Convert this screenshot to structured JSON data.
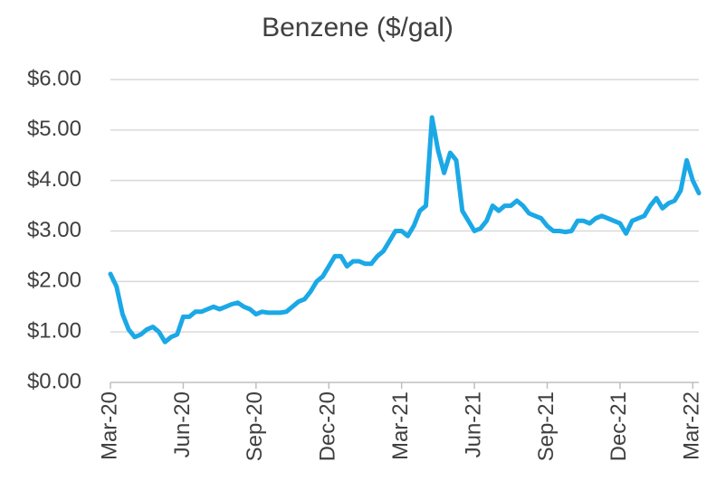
{
  "chart_data": {
    "type": "line",
    "title": "Benzene ($/gal)",
    "categories": [
      "Mar-20",
      null,
      null,
      null,
      null,
      null,
      null,
      null,
      null,
      null,
      null,
      null,
      "Jun-20",
      null,
      null,
      null,
      null,
      null,
      null,
      null,
      null,
      null,
      null,
      null,
      "Sep-20",
      null,
      null,
      null,
      null,
      null,
      null,
      null,
      null,
      null,
      null,
      null,
      "Dec-20",
      null,
      null,
      null,
      null,
      null,
      null,
      null,
      null,
      null,
      null,
      null,
      "Mar-21",
      null,
      null,
      null,
      null,
      null,
      null,
      null,
      null,
      null,
      null,
      null,
      "Jun-21",
      null,
      null,
      null,
      null,
      null,
      null,
      null,
      null,
      null,
      null,
      null,
      "Sep-21",
      null,
      null,
      null,
      null,
      null,
      null,
      null,
      null,
      null,
      null,
      null,
      "Dec-21",
      null,
      null,
      null,
      null,
      null,
      null,
      null,
      null,
      null,
      null,
      null,
      "Mar-22",
      null
    ],
    "series": [
      {
        "name": "Benzene",
        "color": "#1ba8e6",
        "values": [
          2.15,
          1.9,
          1.35,
          1.05,
          0.9,
          0.95,
          1.05,
          1.1,
          1.0,
          0.8,
          0.9,
          0.95,
          1.3,
          1.3,
          1.4,
          1.4,
          1.45,
          1.5,
          1.45,
          1.5,
          1.55,
          1.58,
          1.5,
          1.45,
          1.35,
          1.4,
          1.38,
          1.38,
          1.38,
          1.4,
          1.5,
          1.6,
          1.65,
          1.8,
          2.0,
          2.1,
          2.3,
          2.5,
          2.5,
          2.3,
          2.4,
          2.4,
          2.35,
          2.35,
          2.5,
          2.6,
          2.8,
          3.0,
          3.0,
          2.9,
          3.1,
          3.4,
          3.5,
          5.25,
          4.6,
          4.15,
          4.55,
          4.4,
          3.4,
          3.2,
          3.0,
          3.05,
          3.2,
          3.5,
          3.4,
          3.5,
          3.5,
          3.6,
          3.5,
          3.35,
          3.3,
          3.25,
          3.1,
          3.0,
          3.0,
          2.98,
          3.0,
          3.2,
          3.2,
          3.15,
          3.25,
          3.3,
          3.25,
          3.2,
          3.15,
          2.95,
          3.2,
          3.25,
          3.3,
          3.5,
          3.65,
          3.45,
          3.55,
          3.6,
          3.8,
          4.4,
          4.0,
          3.75
        ]
      }
    ],
    "ylim": [
      0,
      6
    ],
    "yticks": [
      {
        "value": 0,
        "label": "$0.00"
      },
      {
        "value": 1,
        "label": "$1.00"
      },
      {
        "value": 2,
        "label": "$2.00"
      },
      {
        "value": 3,
        "label": "$3.00"
      },
      {
        "value": 4,
        "label": "$4.00"
      },
      {
        "value": 5,
        "label": "$5.00"
      },
      {
        "value": 6,
        "label": "$6.00"
      }
    ],
    "grid": true
  }
}
